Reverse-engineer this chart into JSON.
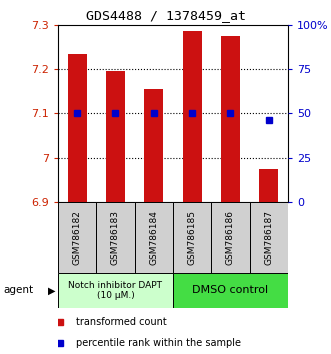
{
  "title": "GDS4488 / 1378459_at",
  "categories": [
    "GSM786182",
    "GSM786183",
    "GSM786184",
    "GSM786185",
    "GSM786186",
    "GSM786187"
  ],
  "bar_values": [
    7.235,
    7.195,
    7.155,
    7.285,
    7.275,
    6.975
  ],
  "bar_base": 6.9,
  "percentile_values": [
    7.1,
    7.1,
    7.1,
    7.1,
    7.1,
    7.085
  ],
  "ylim": [
    6.9,
    7.3
  ],
  "yticks": [
    6.9,
    7.0,
    7.1,
    7.2,
    7.3
  ],
  "ytick_labels": [
    "6.9",
    "7",
    "7.1",
    "7.2",
    "7.3"
  ],
  "y2tick_labels": [
    "0",
    "25",
    "50",
    "75",
    "100%"
  ],
  "bar_color": "#cc1111",
  "percentile_color": "#0000cc",
  "group1_label": "Notch inhibitor DAPT\n(10 μM.)",
  "group2_label": "DMSO control",
  "group1_color": "#ccffcc",
  "group2_color": "#44dd44",
  "agent_label": "agent",
  "legend_bar_label": "transformed count",
  "legend_pct_label": "percentile rank within the sample",
  "bar_width": 0.5
}
